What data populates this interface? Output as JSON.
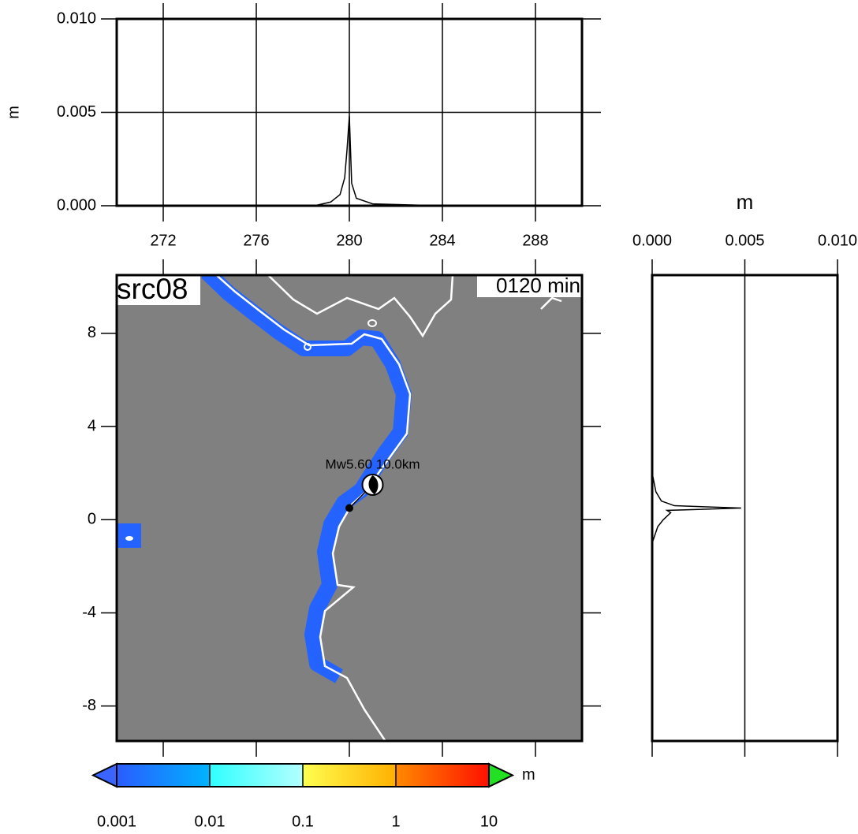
{
  "chart_data": [
    {
      "type": "line",
      "ylabel": "m",
      "xlim": [
        270,
        290
      ],
      "xticks": [
        272,
        276,
        280,
        284,
        288
      ],
      "ylim": [
        0,
        0.01
      ],
      "yticks": [
        {
          "value": 0,
          "label": "0.000"
        },
        {
          "value": 0.005,
          "label": "0.005"
        },
        {
          "value": 0.01,
          "label": "0.010"
        }
      ],
      "grid": true,
      "color": "#000000",
      "x": [
        270,
        278.5,
        279.2,
        279.6,
        279.8,
        279.9,
        280.0,
        280.1,
        280.3,
        281,
        284,
        290
      ],
      "values": [
        0,
        0,
        0.0002,
        0.0006,
        0.0015,
        0.003,
        0.0048,
        0.0012,
        0.0004,
        0.0001,
        0,
        0
      ]
    },
    {
      "type": "map",
      "label": "src08",
      "time": "0120 min",
      "source_annotation": "Mw5.60  10.0km",
      "xlim": [
        270,
        290
      ],
      "xticks": [
        272,
        276,
        280,
        284,
        288
      ],
      "ylim": [
        -9.5,
        10.5
      ],
      "yticks": [
        8,
        4,
        0,
        -4,
        -8
      ],
      "epicenter": {
        "x": 281,
        "y": 1.5
      },
      "station": {
        "x": 280,
        "y": 0.5
      },
      "colorbar": {
        "ticks": [
          0.001,
          0.01,
          0.1,
          1,
          10
        ],
        "unit": "m",
        "segment_colors": [
          [
            "#2a5cff",
            "#00b4ff"
          ],
          [
            "#30ffff",
            "#b4ffff"
          ],
          [
            "#ffff50",
            "#ffb000"
          ],
          [
            "#ff8a00",
            "#ff1000"
          ]
        ],
        "under_color": "#3a64ff",
        "over_color": "#22e022"
      }
    },
    {
      "type": "profile",
      "xlabel": "m",
      "xlim": [
        0,
        0.01
      ],
      "xticks": [
        {
          "value": 0,
          "label": "0.000"
        },
        {
          "value": 0.005,
          "label": "0.005"
        },
        {
          "value": 0.01,
          "label": "0.010"
        }
      ],
      "ylim": [
        -9.5,
        10.5
      ],
      "grid": true,
      "color": "#000000",
      "y": [
        -9.5,
        -1,
        -0.3,
        0,
        0.3,
        0.4,
        0.5,
        0.6,
        0.8,
        1.2,
        2,
        10.5
      ],
      "values": [
        0,
        0,
        0.0003,
        0.0006,
        0.001,
        0.0008,
        0.0048,
        0.0012,
        0.0005,
        0.0002,
        0,
        0
      ]
    }
  ]
}
